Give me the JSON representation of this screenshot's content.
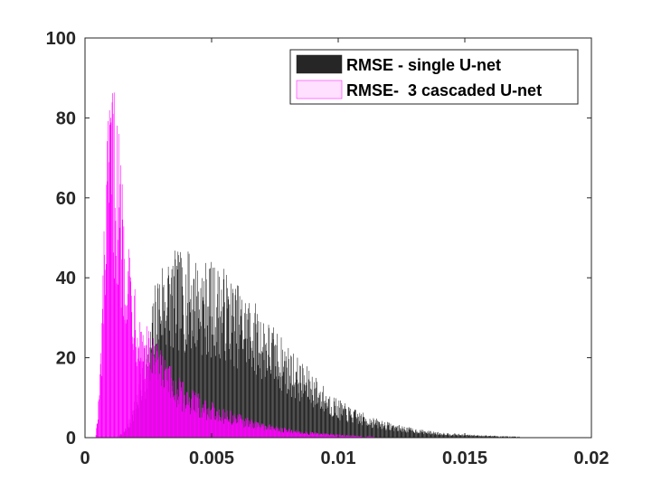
{
  "chart_data": {
    "type": "bar",
    "subtype": "overlaid-histogram",
    "title": "",
    "xlabel": "",
    "ylabel": "",
    "xlim": [
      0,
      0.02
    ],
    "ylim": [
      0,
      100
    ],
    "xticks": [
      0,
      0.005,
      0.01,
      0.015,
      0.02
    ],
    "xtick_labels": [
      "0",
      "0.005",
      "0.01",
      "0.015",
      "0.02"
    ],
    "yticks": [
      0,
      20,
      40,
      60,
      80,
      100
    ],
    "ytick_labels": [
      "0",
      "20",
      "40",
      "60",
      "80",
      "100"
    ],
    "grid": false,
    "legend": "top-right",
    "series": [
      {
        "name": "RMSE - single U-net",
        "color": "#262626",
        "x_range": [
          0.0012,
          0.0188
        ],
        "profile": [
          [
            0.0012,
            0
          ],
          [
            0.0015,
            1
          ],
          [
            0.0018,
            4
          ],
          [
            0.0021,
            10
          ],
          [
            0.0025,
            18
          ],
          [
            0.0028,
            30
          ],
          [
            0.003,
            33
          ],
          [
            0.0035,
            34
          ],
          [
            0.004,
            34
          ],
          [
            0.0045,
            33
          ],
          [
            0.005,
            32
          ],
          [
            0.0055,
            31
          ],
          [
            0.006,
            28
          ],
          [
            0.0065,
            26
          ],
          [
            0.007,
            23
          ],
          [
            0.0075,
            20
          ],
          [
            0.008,
            17
          ],
          [
            0.0085,
            14
          ],
          [
            0.009,
            12
          ],
          [
            0.0095,
            9
          ],
          [
            0.01,
            7
          ],
          [
            0.0105,
            5.5
          ],
          [
            0.011,
            4.5
          ],
          [
            0.0115,
            3.5
          ],
          [
            0.012,
            2.8
          ],
          [
            0.0125,
            2.2
          ],
          [
            0.013,
            1.7
          ],
          [
            0.0135,
            1.3
          ],
          [
            0.014,
            1
          ],
          [
            0.0145,
            0.8
          ],
          [
            0.015,
            0.6
          ],
          [
            0.016,
            0.4
          ],
          [
            0.017,
            0.2
          ],
          [
            0.0188,
            0.1
          ]
        ],
        "peak": {
          "x": 0.0041,
          "y": 46
        }
      },
      {
        "name": "RMSE-  3 cascaded U-net",
        "color": "#FF00FF",
        "fill": "#FFE0FF",
        "x_range": [
          0.0004,
          0.0123
        ],
        "profile": [
          [
            0.0004,
            0
          ],
          [
            0.0005,
            5
          ],
          [
            0.0006,
            15
          ],
          [
            0.0007,
            32
          ],
          [
            0.0008,
            48
          ],
          [
            0.0009,
            58
          ],
          [
            0.001,
            65
          ],
          [
            0.0011,
            66
          ],
          [
            0.0012,
            62
          ],
          [
            0.0013,
            57
          ],
          [
            0.0014,
            52
          ],
          [
            0.0015,
            48
          ],
          [
            0.0016,
            44
          ],
          [
            0.0017,
            40
          ],
          [
            0.0018,
            36
          ],
          [
            0.002,
            30
          ],
          [
            0.0022,
            24
          ],
          [
            0.0025,
            20
          ],
          [
            0.003,
            16
          ],
          [
            0.0035,
            12
          ],
          [
            0.004,
            9.5
          ],
          [
            0.0045,
            8
          ],
          [
            0.005,
            6.5
          ],
          [
            0.0055,
            5.5
          ],
          [
            0.006,
            4.5
          ],
          [
            0.0065,
            3.5
          ],
          [
            0.007,
            2.8
          ],
          [
            0.0075,
            2.2
          ],
          [
            0.008,
            1.7
          ],
          [
            0.0085,
            1.3
          ],
          [
            0.009,
            1
          ],
          [
            0.01,
            0.6
          ],
          [
            0.011,
            0.3
          ],
          [
            0.0123,
            0.1
          ]
        ],
        "peak": {
          "x": 0.0011,
          "y": 81
        }
      }
    ]
  }
}
